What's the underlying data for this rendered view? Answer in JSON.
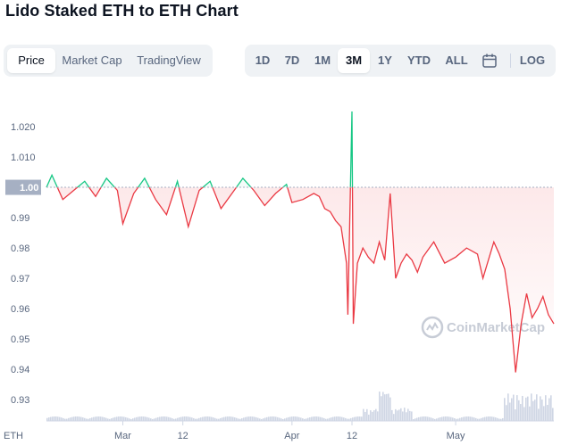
{
  "page": {
    "title": "Lido Staked ETH to ETH Chart"
  },
  "view_tabs": [
    "Price",
    "Market Cap",
    "TradingView"
  ],
  "view_tab_active": "Price",
  "range_buttons": [
    "1D",
    "7D",
    "1M",
    "3M",
    "1Y",
    "YTD",
    "ALL"
  ],
  "range_active": "3M",
  "log_label": "LOG",
  "icons": {
    "calendar": "calendar-icon",
    "watermark_logo": "coinmarketcap-logo-icon"
  },
  "watermark_text": "CoinMarketCap",
  "colors": {
    "up": "#16c784",
    "down": "#ea3943",
    "volume": "#cfd6e4",
    "baseline_tag": "#a6b0c3"
  },
  "chart_data": {
    "type": "line",
    "baseline": 1.0,
    "baseline_label": "1.00",
    "ylim": [
      0.923,
      1.03
    ],
    "yticks": [
      0.93,
      0.94,
      0.95,
      0.96,
      0.97,
      0.98,
      0.99,
      1.0,
      1.01,
      1.02
    ],
    "ytick_labels": [
      "0.93",
      "0.94",
      "0.95",
      "0.96",
      "0.97",
      "0.98",
      "0.99",
      "1.00",
      "1.010",
      "1.020"
    ],
    "xlim": [
      "2022-02-15",
      "2022-05-19"
    ],
    "xticks": [
      {
        "date": "2022-03-01",
        "label": "Mar"
      },
      {
        "date": "2022-03-12",
        "label": "12"
      },
      {
        "date": "2022-04-01",
        "label": "Apr"
      },
      {
        "date": "2022-04-12",
        "label": "12"
      },
      {
        "date": "2022-05-01",
        "label": "May"
      }
    ],
    "x_axis_label": "ETH",
    "series": [
      {
        "x": [
          "2022-02-15",
          "2022-02-16",
          "2022-02-18",
          "2022-02-20",
          "2022-02-22",
          "2022-02-24",
          "2022-02-26",
          "2022-02-28",
          "2022-03-01",
          "2022-03-03",
          "2022-03-05",
          "2022-03-07",
          "2022-03-09",
          "2022-03-11",
          "2022-03-13",
          "2022-03-15",
          "2022-03-17",
          "2022-03-19",
          "2022-03-21",
          "2022-03-23",
          "2022-03-25",
          "2022-03-27",
          "2022-03-29",
          "2022-03-31",
          "2022-04-01",
          "2022-04-03",
          "2022-04-05",
          "2022-04-06",
          "2022-04-07",
          "2022-04-08",
          "2022-04-09",
          "2022-04-10",
          "2022-04-11",
          "2022-04-11",
          "2022-04-12",
          "2022-04-12",
          "2022-04-13",
          "2022-04-14",
          "2022-04-15",
          "2022-04-16",
          "2022-04-17",
          "2022-04-18",
          "2022-04-19",
          "2022-04-20",
          "2022-04-21",
          "2022-04-22",
          "2022-04-23",
          "2022-04-24",
          "2022-04-25",
          "2022-04-27",
          "2022-04-29",
          "2022-05-01",
          "2022-05-03",
          "2022-05-05",
          "2022-05-06",
          "2022-05-07",
          "2022-05-08",
          "2022-05-09",
          "2022-05-10",
          "2022-05-11",
          "2022-05-12",
          "2022-05-13",
          "2022-05-14",
          "2022-05-15",
          "2022-05-16",
          "2022-05-17",
          "2022-05-18",
          "2022-05-19"
        ],
        "y": [
          1.0,
          1.004,
          0.996,
          0.999,
          1.002,
          0.997,
          1.003,
          0.999,
          0.988,
          0.998,
          1.003,
          0.996,
          0.991,
          1.002,
          0.987,
          0.999,
          1.002,
          0.993,
          0.998,
          1.003,
          0.999,
          0.994,
          0.998,
          1.001,
          0.995,
          0.996,
          0.998,
          0.997,
          0.993,
          0.992,
          0.989,
          0.987,
          0.975,
          0.958,
          1.025,
          0.955,
          0.975,
          0.98,
          0.977,
          0.975,
          0.982,
          0.976,
          0.998,
          0.97,
          0.975,
          0.978,
          0.976,
          0.972,
          0.977,
          0.982,
          0.975,
          0.977,
          0.98,
          0.978,
          0.97,
          0.976,
          0.982,
          0.978,
          0.973,
          0.96,
          0.939,
          0.955,
          0.965,
          0.957,
          0.96,
          0.964,
          0.958,
          0.955
        ]
      }
    ]
  }
}
